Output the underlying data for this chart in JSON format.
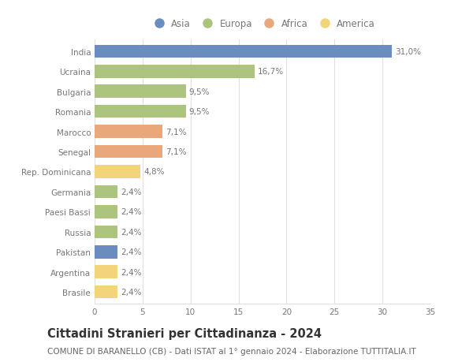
{
  "countries": [
    "India",
    "Ucraina",
    "Bulgaria",
    "Romania",
    "Marocco",
    "Senegal",
    "Rep. Dominicana",
    "Germania",
    "Paesi Bassi",
    "Russia",
    "Pakistan",
    "Argentina",
    "Brasile"
  ],
  "values": [
    31.0,
    16.7,
    9.5,
    9.5,
    7.1,
    7.1,
    4.8,
    2.4,
    2.4,
    2.4,
    2.4,
    2.4,
    2.4
  ],
  "labels": [
    "31,0%",
    "16,7%",
    "9,5%",
    "9,5%",
    "7,1%",
    "7,1%",
    "4,8%",
    "2,4%",
    "2,4%",
    "2,4%",
    "2,4%",
    "2,4%",
    "2,4%"
  ],
  "continents": [
    "Asia",
    "Europa",
    "Europa",
    "Europa",
    "Africa",
    "Africa",
    "America",
    "Europa",
    "Europa",
    "Europa",
    "Asia",
    "America",
    "America"
  ],
  "continent_colors": {
    "Asia": "#6b8cbf",
    "Europa": "#adc47e",
    "Africa": "#e8a87c",
    "America": "#f2d47a"
  },
  "legend_order": [
    "Asia",
    "Europa",
    "Africa",
    "America"
  ],
  "title": "Cittadini Stranieri per Cittadinanza - 2024",
  "subtitle": "COMUNE DI BARANELLO (CB) - Dati ISTAT al 1° gennaio 2024 - Elaborazione TUTTITALIA.IT",
  "xlim": [
    0,
    35
  ],
  "xticks": [
    0,
    5,
    10,
    15,
    20,
    25,
    30,
    35
  ],
  "background_color": "#ffffff",
  "grid_color": "#e0e0e0",
  "bar_height": 0.65,
  "label_fontsize": 7.5,
  "tick_label_fontsize": 7.5,
  "title_fontsize": 10.5,
  "subtitle_fontsize": 7.5,
  "legend_fontsize": 8.5
}
